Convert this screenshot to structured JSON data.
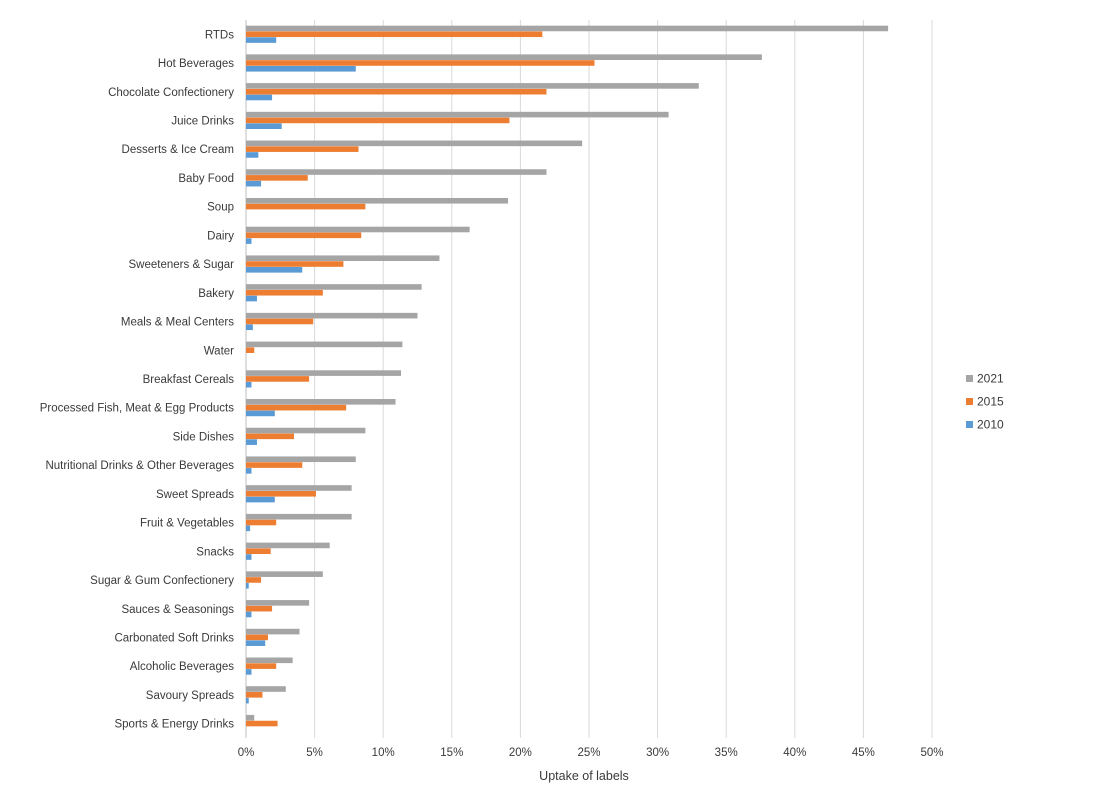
{
  "chart_data": {
    "type": "bar",
    "orientation": "horizontal",
    "categories": [
      "RTDs",
      "Hot Beverages",
      "Chocolate Confectionery",
      "Juice Drinks",
      "Desserts & Ice Cream",
      "Baby Food",
      "Soup",
      "Dairy",
      "Sweeteners & Sugar",
      "Bakery",
      "Meals & Meal Centers",
      "Water",
      "Breakfast Cereals",
      "Processed Fish, Meat & Egg Products",
      "Side Dishes",
      "Nutritional Drinks & Other Beverages",
      "Sweet Spreads",
      "Fruit & Vegetables",
      "Snacks",
      "Sugar & Gum Confectionery",
      "Sauces & Seasonings",
      "Carbonated Soft Drinks",
      "Alcoholic Beverages",
      "Savoury Spreads",
      "Sports & Energy Drinks"
    ],
    "series": [
      {
        "name": "2021",
        "color": "#a5a5a5",
        "values": [
          46.8,
          37.6,
          33.0,
          30.8,
          24.5,
          21.9,
          19.1,
          16.3,
          14.1,
          12.8,
          12.5,
          11.4,
          11.3,
          10.9,
          8.7,
          8.0,
          7.7,
          7.7,
          6.1,
          5.6,
          4.6,
          3.9,
          3.4,
          2.9,
          0.6
        ]
      },
      {
        "name": "2015",
        "color": "#ed7d31",
        "values": [
          21.6,
          25.4,
          21.9,
          19.2,
          8.2,
          4.5,
          8.7,
          8.4,
          7.1,
          5.6,
          4.9,
          0.6,
          4.6,
          7.3,
          3.5,
          4.1,
          5.1,
          2.2,
          1.8,
          1.1,
          1.9,
          1.6,
          2.2,
          1.2,
          2.3
        ]
      },
      {
        "name": "2010",
        "color": "#5b9bd5",
        "values": [
          2.2,
          8.0,
          1.9,
          2.6,
          0.9,
          1.1,
          0.0,
          0.4,
          4.1,
          0.8,
          0.5,
          0.0,
          0.4,
          2.1,
          0.8,
          0.4,
          2.1,
          0.3,
          0.4,
          0.2,
          0.4,
          1.4,
          0.4,
          0.2,
          0.0
        ]
      }
    ],
    "x_ticks": [
      "0%",
      "5%",
      "10%",
      "15%",
      "20%",
      "25%",
      "30%",
      "35%",
      "40%",
      "45%",
      "50%"
    ],
    "xlim": [
      0,
      50
    ],
    "xlabel": "Uptake of labels",
    "ylabel": "",
    "title": "",
    "grid": "vertical",
    "legend_position": "right",
    "legend_order": [
      "2021",
      "2015",
      "2010"
    ]
  }
}
